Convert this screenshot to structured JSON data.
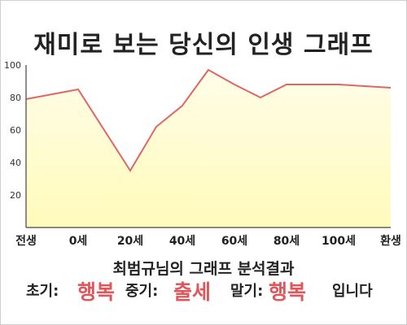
{
  "chart_data": {
    "type": "area",
    "title": "재미로 보는 당신의 인생 그래프",
    "x": [
      -20,
      0,
      20,
      30,
      40,
      50,
      60,
      70,
      80,
      90,
      100,
      110,
      120
    ],
    "values": [
      79,
      85,
      35,
      62,
      75,
      97,
      88,
      80,
      88,
      88,
      88,
      87,
      86
    ],
    "xticks": [
      {
        "x": -20,
        "label": "전생"
      },
      {
        "x": 0,
        "label": "0세"
      },
      {
        "x": 20,
        "label": "20세"
      },
      {
        "x": 40,
        "label": "40세"
      },
      {
        "x": 60,
        "label": "60세"
      },
      {
        "x": 80,
        "label": "80세"
      },
      {
        "x": 100,
        "label": "100세"
      },
      {
        "x": 120,
        "label": "환생"
      }
    ],
    "yticks": [
      20,
      40,
      60,
      80,
      100
    ],
    "ylim": [
      0,
      100
    ],
    "xlim": [
      -20,
      120
    ],
    "grid": false,
    "legend": "none",
    "colors": {
      "line": "#e06666",
      "fill": "#fffbbb",
      "fill_top": "#fffde8"
    }
  },
  "summary": "최범규님의 그래프 분석결과",
  "result": {
    "early_label": "초기:",
    "early_value": "행복",
    "mid_label": "중기:",
    "mid_value": "출세",
    "late_label": "말기:",
    "late_value": "행복",
    "suffix": "입니다"
  }
}
